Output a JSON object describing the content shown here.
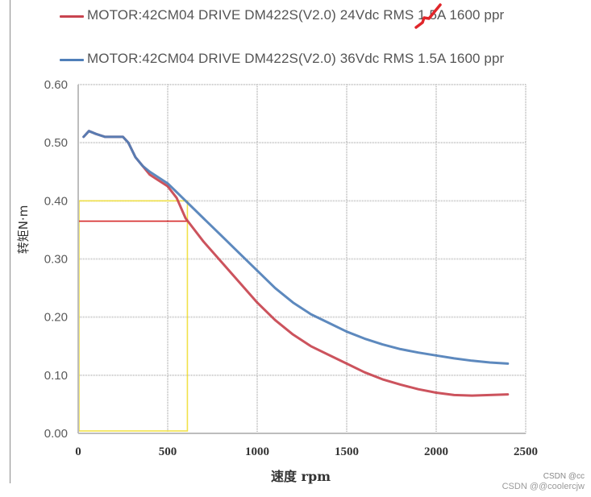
{
  "legend": [
    {
      "label": "MOTOR:42CM04 DRIVE DM422S(V2.0)  24Vdc RMS 1.5A 1600 ppr",
      "color": "#c8444f"
    },
    {
      "label": "MOTOR:42CM04 DRIVE DM422S(V2.0)  36Vdc RMS 1.5A 1600 ppr",
      "color": "#4f7fb9"
    }
  ],
  "colors": {
    "red": "#c8444f",
    "blue": "#4f7fb9",
    "box_red": "#d62a2a",
    "box_yellow": "#f2e24a",
    "grid": "#c8c8c8"
  },
  "watermark": {
    "line1": "CSDN @cc",
    "line2": "CSDN @@coolercjw"
  },
  "chart_data": {
    "type": "line",
    "xlabel": "速度 rpm",
    "ylabel": "转矩N·m",
    "xlim": [
      0,
      2500
    ],
    "ylim": [
      0,
      0.6
    ],
    "x_ticks": [
      "0",
      "500",
      "1000",
      "1500",
      "2000",
      "2500"
    ],
    "y_ticks": [
      "0.00",
      "0.10",
      "0.20",
      "0.30",
      "0.40",
      "0.50",
      "0.60"
    ],
    "grid": true,
    "legend_position": "top",
    "series": [
      {
        "name": "MOTOR:42CM04 DRIVE DM422S(V2.0)  24Vdc RMS 1.5A 1600 ppr",
        "x": [
          30,
          60,
          100,
          150,
          200,
          250,
          280,
          320,
          360,
          400,
          450,
          500,
          550,
          600,
          700,
          800,
          900,
          1000,
          1100,
          1200,
          1300,
          1400,
          1500,
          1600,
          1700,
          1800,
          1900,
          2000,
          2100,
          2200,
          2300,
          2400
        ],
        "y": [
          0.51,
          0.52,
          0.515,
          0.51,
          0.51,
          0.51,
          0.5,
          0.475,
          0.46,
          0.445,
          0.435,
          0.425,
          0.405,
          0.37,
          0.33,
          0.295,
          0.26,
          0.225,
          0.195,
          0.17,
          0.15,
          0.135,
          0.12,
          0.105,
          0.093,
          0.084,
          0.076,
          0.07,
          0.066,
          0.065,
          0.066,
          0.067
        ]
      },
      {
        "name": "MOTOR:42CM04 DRIVE DM422S(V2.0)  36Vdc RMS 1.5A 1600 ppr",
        "x": [
          30,
          60,
          100,
          150,
          200,
          250,
          280,
          320,
          360,
          400,
          450,
          500,
          550,
          600,
          700,
          800,
          900,
          1000,
          1100,
          1200,
          1300,
          1400,
          1500,
          1600,
          1700,
          1800,
          1900,
          2000,
          2100,
          2200,
          2300,
          2400
        ],
        "y": [
          0.51,
          0.52,
          0.515,
          0.51,
          0.51,
          0.51,
          0.5,
          0.475,
          0.46,
          0.45,
          0.44,
          0.43,
          0.415,
          0.4,
          0.37,
          0.34,
          0.31,
          0.28,
          0.25,
          0.225,
          0.205,
          0.19,
          0.175,
          0.163,
          0.153,
          0.145,
          0.139,
          0.134,
          0.129,
          0.125,
          0.122,
          0.12
        ]
      }
    ],
    "annotations": {
      "red_box": {
        "x": [
          0,
          610
        ],
        "y": [
          0,
          0.365
        ]
      },
      "yellow_box": {
        "x": [
          0,
          610
        ],
        "y": [
          0,
          0.4
        ]
      }
    }
  }
}
